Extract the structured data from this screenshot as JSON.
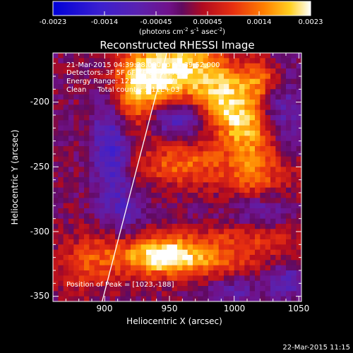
{
  "chart_data": {
    "type": "heatmap",
    "title": "Reconstructed RHESSI Image",
    "xlabel": "Heliocentric X (arcsec)",
    "ylabel": "Heliocentric Y (arcsec)",
    "xlim": [
      860,
      1052
    ],
    "ylim": [
      -354,
      -162
    ],
    "x_ticks": [
      900,
      950,
      1000,
      1050
    ],
    "y_ticks": [
      -200,
      -250,
      -300,
      -350
    ],
    "colorbar": {
      "ticks": [
        "-0.0023",
        "-0.0014",
        "-0.00045",
        "0.00045",
        "0.0014",
        "0.0023"
      ],
      "label_parts": [
        "(photons cm",
        "-2",
        " s",
        "-1",
        " asec",
        "-2",
        ")"
      ],
      "range": [
        -0.0023,
        0.0023
      ]
    },
    "info_lines": [
      "21-Mar-2015 04:39:28.000 to 04:39:52.000",
      "Detectors: 3F 5F 6F 7F 8F 9F, Att 0",
      "Energy Range: 12.0 - 25.0 keV",
      "Clean     Total counts: 1.11E+03"
    ],
    "peak_label": "Position of Peak = [1023,-188]",
    "limb_line": [
      [
        898,
        -354
      ],
      [
        948,
        -162
      ]
    ],
    "sources": [
      {
        "x": 1000,
        "y": -207,
        "amp": 0.0021,
        "sx": 16,
        "sy": 42,
        "rot": 0.62
      },
      {
        "x": 1022,
        "y": -182,
        "amp": 0.0013,
        "sx": 12,
        "sy": 12,
        "rot": 0
      },
      {
        "x": 940,
        "y": -178,
        "amp": 0.0022,
        "sx": 22,
        "sy": 17,
        "rot": 0
      },
      {
        "x": 920,
        "y": -202,
        "amp": 0.0011,
        "sx": 14,
        "sy": 18,
        "rot": 0
      },
      {
        "x": 945,
        "y": -318,
        "amp": 0.0017,
        "sx": 20,
        "sy": 11,
        "rot": 0
      },
      {
        "x": 975,
        "y": -322,
        "amp": 0.0011,
        "sx": 35,
        "sy": 10,
        "rot": 0
      },
      {
        "x": 960,
        "y": -248,
        "amp": 0.0012,
        "sx": 24,
        "sy": 12,
        "rot": 0
      },
      {
        "x": 1010,
        "y": -262,
        "amp": 0.0008,
        "sx": 16,
        "sy": 14,
        "rot": 0
      },
      {
        "x": 1010,
        "y": -305,
        "amp": 0.0007,
        "sx": 28,
        "sy": 8,
        "rot": 0
      },
      {
        "x": 900,
        "y": -318,
        "amp": 0.0008,
        "sx": 18,
        "sy": 14,
        "rot": 0
      },
      {
        "x": 880,
        "y": -330,
        "amp": 0.0006,
        "sx": 14,
        "sy": 14,
        "rot": 0
      },
      {
        "x": 905,
        "y": -230,
        "amp": -0.0014,
        "sx": 10,
        "sy": 32,
        "rot": 0
      },
      {
        "x": 955,
        "y": -212,
        "amp": -0.0012,
        "sx": 16,
        "sy": 10,
        "rot": 0
      },
      {
        "x": 1035,
        "y": -210,
        "amp": -0.001,
        "sx": 12,
        "sy": 30,
        "rot": 0
      },
      {
        "x": 1020,
        "y": -282,
        "amp": -0.0008,
        "sx": 18,
        "sy": 10,
        "rot": 0
      },
      {
        "x": 1040,
        "y": -338,
        "amp": -0.0009,
        "sx": 10,
        "sy": 10,
        "rot": 0
      },
      {
        "x": 1000,
        "y": -345,
        "amp": -0.0007,
        "sx": 14,
        "sy": 8,
        "rot": 0
      },
      {
        "x": 915,
        "y": -285,
        "amp": -0.0007,
        "sx": 12,
        "sy": 14,
        "rot": 0
      }
    ],
    "noise_amp": 0.00032
  },
  "footer": {
    "date": "22-Mar-2015 11:15"
  }
}
